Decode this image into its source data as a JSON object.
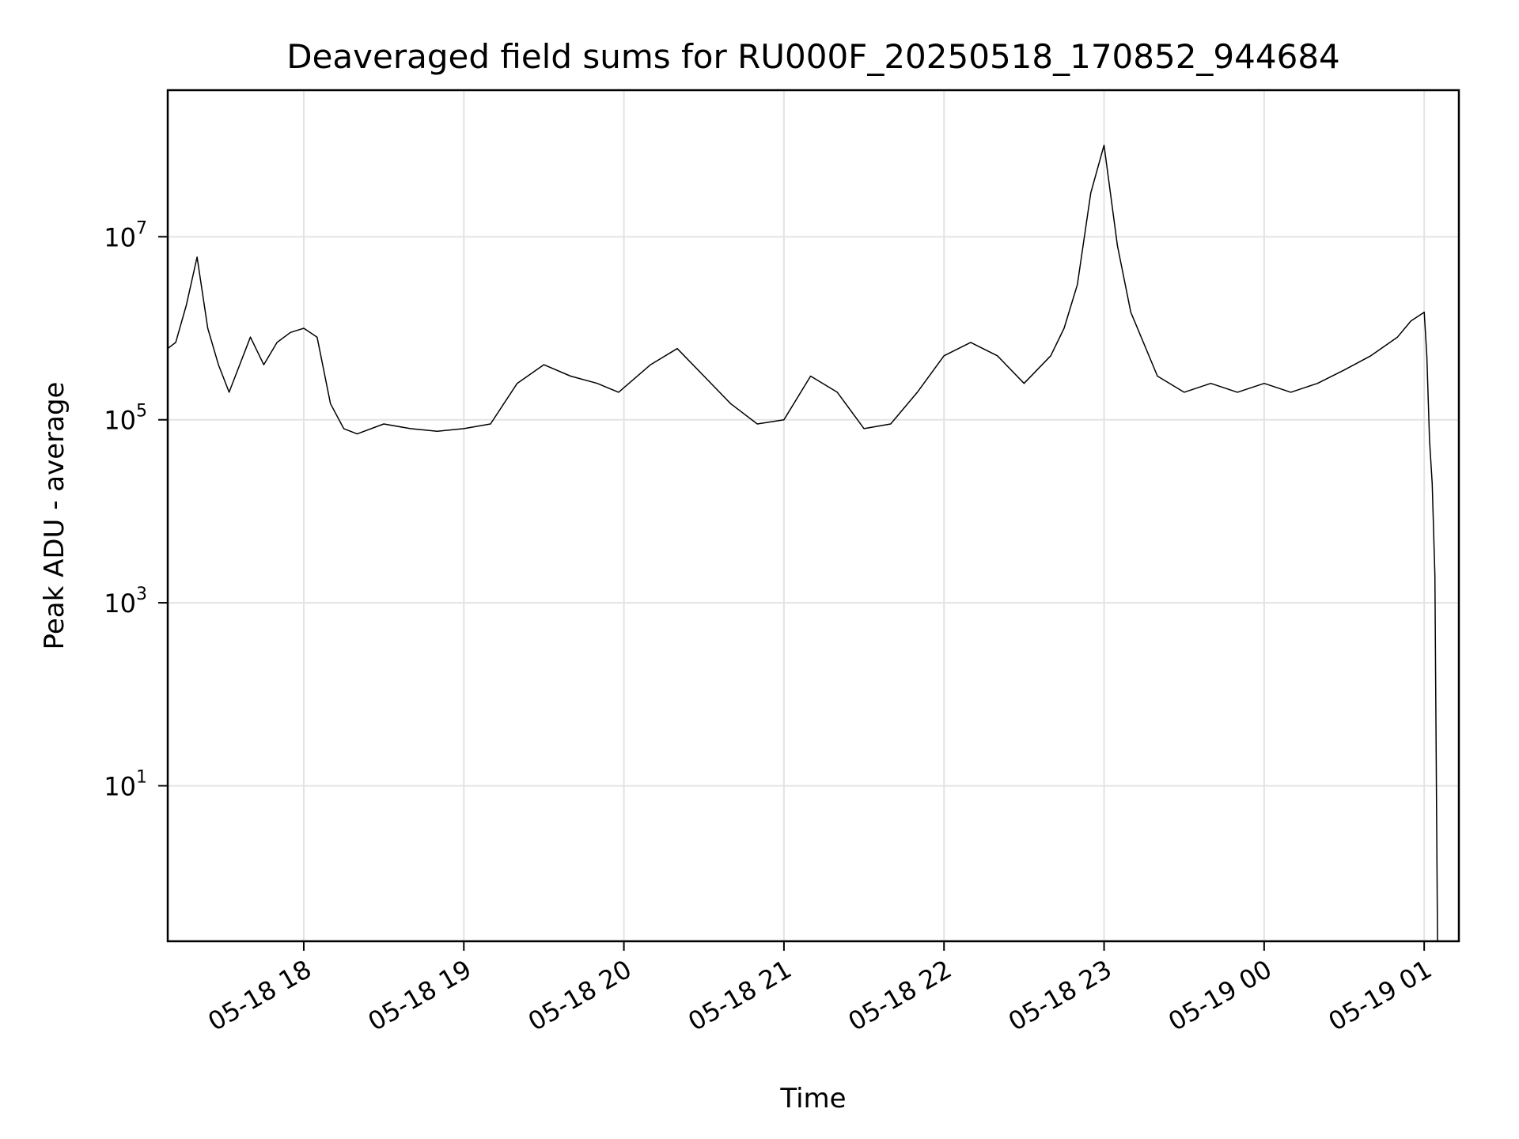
{
  "chart_data": {
    "type": "line",
    "title": "Deaveraged field sums for RU000F_20250518_170852_944684",
    "xlabel": "Time",
    "ylabel": "Peak ADU - average",
    "yscale": "log",
    "grid": true,
    "line_color": "#000000",
    "xlim": [
      "2025-05-18 17:09",
      "2025-05-19 01:13"
    ],
    "ylim": [
      0.2,
      400000000
    ],
    "xticks": [
      {
        "t": "2025-05-18 18:00",
        "label": "05-18 18"
      },
      {
        "t": "2025-05-18 19:00",
        "label": "05-18 19"
      },
      {
        "t": "2025-05-18 20:00",
        "label": "05-18 20"
      },
      {
        "t": "2025-05-18 21:00",
        "label": "05-18 21"
      },
      {
        "t": "2025-05-18 22:00",
        "label": "05-18 22"
      },
      {
        "t": "2025-05-18 23:00",
        "label": "05-18 23"
      },
      {
        "t": "2025-05-19 00:00",
        "label": "05-19 00"
      },
      {
        "t": "2025-05-19 01:00",
        "label": "05-19 01"
      }
    ],
    "yticks": [
      {
        "value": 10,
        "base": "10",
        "exp": "1"
      },
      {
        "value": 1000,
        "base": "10",
        "exp": "3"
      },
      {
        "value": 100000,
        "base": "10",
        "exp": "5"
      },
      {
        "value": 10000000,
        "base": "10",
        "exp": "7"
      }
    ],
    "series": [
      {
        "x": [
          "2025-05-18 17:09",
          "2025-05-18 17:12",
          "2025-05-18 17:16",
          "2025-05-18 17:20",
          "2025-05-18 17:24",
          "2025-05-18 17:28",
          "2025-05-18 17:32",
          "2025-05-18 17:36",
          "2025-05-18 17:40",
          "2025-05-18 17:45",
          "2025-05-18 17:50",
          "2025-05-18 17:55",
          "2025-05-18 18:00",
          "2025-05-18 18:05",
          "2025-05-18 18:10",
          "2025-05-18 18:15",
          "2025-05-18 18:20",
          "2025-05-18 18:30",
          "2025-05-18 18:40",
          "2025-05-18 18:50",
          "2025-05-18 19:00",
          "2025-05-18 19:10",
          "2025-05-18 19:20",
          "2025-05-18 19:30",
          "2025-05-18 19:40",
          "2025-05-18 19:50",
          "2025-05-18 19:58",
          "2025-05-18 20:10",
          "2025-05-18 20:20",
          "2025-05-18 20:30",
          "2025-05-18 20:40",
          "2025-05-18 20:50",
          "2025-05-18 21:00",
          "2025-05-18 21:10",
          "2025-05-18 21:20",
          "2025-05-18 21:30",
          "2025-05-18 21:40",
          "2025-05-18 21:50",
          "2025-05-18 22:00",
          "2025-05-18 22:10",
          "2025-05-18 22:20",
          "2025-05-18 22:30",
          "2025-05-18 22:40",
          "2025-05-18 22:45",
          "2025-05-18 22:50",
          "2025-05-18 22:55",
          "2025-05-18 23:00",
          "2025-05-18 23:05",
          "2025-05-18 23:10",
          "2025-05-18 23:20",
          "2025-05-18 23:30",
          "2025-05-18 23:40",
          "2025-05-18 23:50",
          "2025-05-19 00:00",
          "2025-05-19 00:10",
          "2025-05-19 00:20",
          "2025-05-19 00:30",
          "2025-05-19 00:40",
          "2025-05-19 00:50",
          "2025-05-19 00:55",
          "2025-05-19 01:00",
          "2025-05-19 01:01",
          "2025-05-19 01:02",
          "2025-05-19 01:03",
          "2025-05-19 01:04",
          "2025-05-19 01:05"
        ],
        "y": [
          600000,
          700000,
          1800000,
          6000000,
          1000000,
          400000,
          200000,
          400000,
          800000,
          400000,
          700000,
          900000,
          1000000,
          800000,
          150000,
          80000,
          70000,
          90000,
          80000,
          75000,
          80000,
          90000,
          250000,
          400000,
          300000,
          250000,
          200000,
          400000,
          600000,
          300000,
          150000,
          90000,
          100000,
          300000,
          200000,
          80000,
          90000,
          200000,
          500000,
          700000,
          500000,
          250000,
          500000,
          1000000,
          3000000,
          30000000,
          100000000,
          8000000,
          1500000,
          300000,
          200000,
          250000,
          200000,
          250000,
          200000,
          250000,
          350000,
          500000,
          800000,
          1200000,
          1500000,
          500000,
          60000,
          20000,
          2000,
          0.2
        ]
      }
    ]
  }
}
